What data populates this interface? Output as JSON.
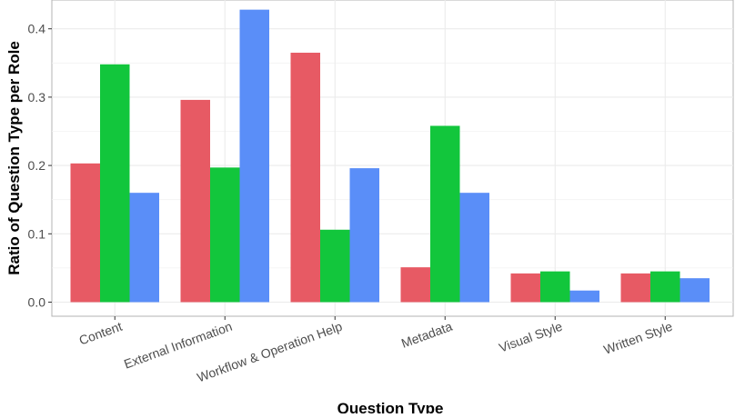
{
  "chart_data": {
    "type": "bar",
    "xlabel": "Question Type",
    "ylabel": "Ratio of Question Type per Role",
    "categories": [
      "Content",
      "External Information",
      "Workflow & Operation Help",
      "Metadata",
      "Visual Style",
      "Written Style"
    ],
    "series": [
      {
        "color": "#e75a64",
        "values": [
          0.203,
          0.296,
          0.365,
          0.051,
          0.042,
          0.042
        ]
      },
      {
        "color": "#12c63c",
        "values": [
          0.348,
          0.197,
          0.106,
          0.258,
          0.045,
          0.045
        ]
      },
      {
        "color": "#5a8ef8",
        "values": [
          0.16,
          0.428,
          0.196,
          0.16,
          0.017,
          0.035
        ]
      }
    ],
    "ylim": [
      0,
      0.44
    ],
    "yticks": [
      "0.0",
      "0.1",
      "0.2",
      "0.3",
      "0.4"
    ],
    "grid": true,
    "legend": "none"
  }
}
